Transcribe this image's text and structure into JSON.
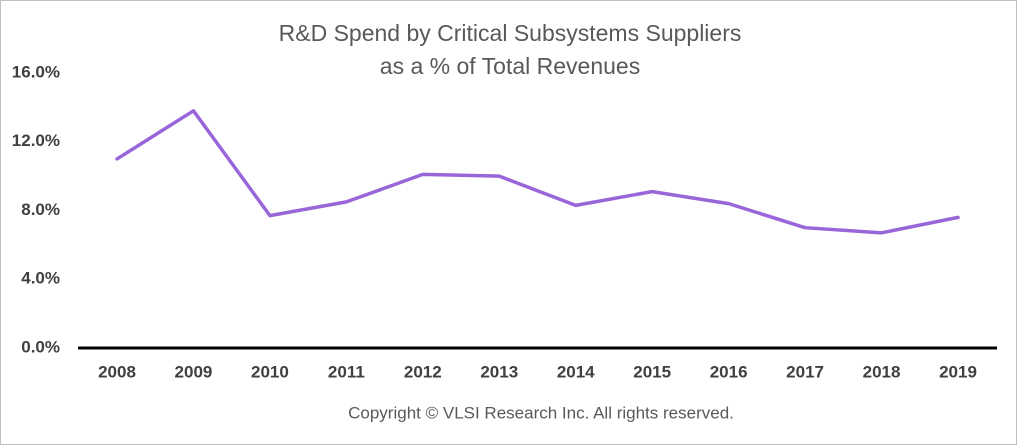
{
  "chart_data": {
    "type": "line",
    "title": [
      "R&D Spend by Critical Subsystems Suppliers",
      "as a % of Total Revenues"
    ],
    "categories": [
      "2008",
      "2009",
      "2010",
      "2011",
      "2012",
      "2013",
      "2014",
      "2015",
      "2016",
      "2017",
      "2018",
      "2019"
    ],
    "values": [
      11.0,
      13.8,
      7.7,
      8.5,
      10.1,
      10.0,
      8.3,
      9.1,
      8.4,
      7.0,
      6.7,
      7.6
    ],
    "color": "#9966d9",
    "ylim": [
      0,
      16
    ],
    "yticks": [
      {
        "value": 0,
        "label": "0.0%"
      },
      {
        "value": 4,
        "label": "4.0%"
      },
      {
        "value": 8,
        "label": "8.0%"
      },
      {
        "value": 12,
        "label": "12.0%"
      },
      {
        "value": 16,
        "label": "16.0%"
      }
    ],
    "grid": false,
    "annotation": "Copyright © VLSI Research Inc.  All rights reserved."
  }
}
